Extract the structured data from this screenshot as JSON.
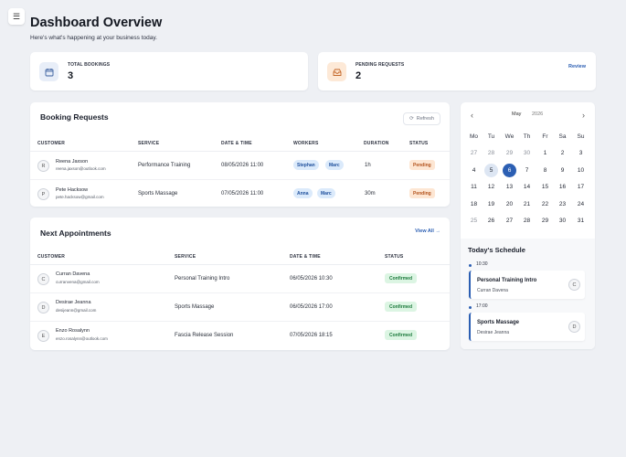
{
  "header": {
    "title": "Dashboard Overview",
    "subtitle": "Here's what's happening at your business today."
  },
  "stats": {
    "total_bookings": {
      "label": "TOTAL BOOKINGS",
      "value": "3",
      "icon": "calendar-icon"
    },
    "pending_requests": {
      "label": "PENDING REQUESTS",
      "value": "2",
      "icon": "inbox-icon",
      "link": "Review"
    }
  },
  "booking_requests": {
    "title": "Booking Requests",
    "refresh_label": "Refresh",
    "columns": [
      "CUSTOMER",
      "SERVICE",
      "DATE & TIME",
      "WORKERS",
      "DURATION",
      "STATUS"
    ],
    "rows": [
      {
        "initial": "R",
        "name": "Reena Jaxson",
        "email": "reena.jaxson@outlook.com",
        "service": "Performance Training",
        "datetime": "08/05/2026 11:00",
        "workers": [
          "Stephan",
          "Marc"
        ],
        "duration": "1h",
        "status": "Pending"
      },
      {
        "initial": "P",
        "name": "Pete Hacksow",
        "email": "pete.hacksow@gmail.com",
        "service": "Sports Massage",
        "datetime": "07/05/2026 11:00",
        "workers": [
          "Anna",
          "Marc"
        ],
        "duration": "30m",
        "status": "Pending"
      }
    ]
  },
  "next_appointments": {
    "title": "Next Appointments",
    "view_all_label": "View All",
    "columns": [
      "CUSTOMER",
      "SERVICE",
      "DATE & TIME",
      "STATUS"
    ],
    "rows": [
      {
        "initial": "C",
        "name": "Curran Davena",
        "email": "curranvena@gmail.com",
        "service": "Personal Training Intro",
        "datetime": "06/05/2026 10:30",
        "status": "Confirmed"
      },
      {
        "initial": "D",
        "name": "Desirae Jeanna",
        "email": "desijeann@gmail.com",
        "service": "Sports Massage",
        "datetime": "06/05/2026 17:00",
        "status": "Confirmed"
      },
      {
        "initial": "E",
        "name": "Enzo Rosalynn",
        "email": "enzo.rosalynn@outlook.com",
        "service": "Fascia Release Session",
        "datetime": "07/05/2026 18:15",
        "status": "Confirmed"
      }
    ]
  },
  "calendar": {
    "month": "May",
    "year": "2026",
    "weekdays": [
      "Mo",
      "Tu",
      "We",
      "Th",
      "Fr",
      "Sa",
      "Su"
    ],
    "weeks": [
      [
        "27",
        "28",
        "29",
        "30",
        "1",
        "2",
        "3"
      ],
      [
        "4",
        "5",
        "6",
        "7",
        "8",
        "9",
        "10"
      ],
      [
        "11",
        "12",
        "13",
        "14",
        "15",
        "16",
        "17"
      ],
      [
        "18",
        "19",
        "20",
        "21",
        "22",
        "23",
        "24"
      ],
      [
        "25",
        "26",
        "27",
        "28",
        "29",
        "30",
        "31"
      ]
    ],
    "muted_first_week_count": 4,
    "highlight_day": "5",
    "selected_day": "6"
  },
  "schedule": {
    "title": "Today's Schedule",
    "items": [
      {
        "time": "10:30",
        "service": "Personal Training Intro",
        "client": "Curran Davena",
        "initial": "C"
      },
      {
        "time": "17:00",
        "service": "Sports Massage",
        "client": "Desirae Jeanna",
        "initial": "D"
      }
    ]
  },
  "colors": {
    "accent": "#2c5fb3",
    "pending_bg": "#fde6d3",
    "confirmed_bg": "#dcf5e3",
    "worker_chip_bg": "#dbeafb"
  }
}
